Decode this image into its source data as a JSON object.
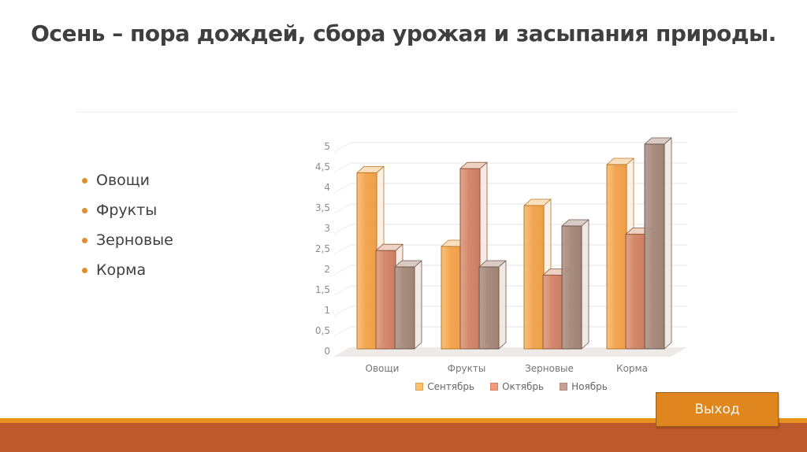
{
  "slide": {
    "title": "Осень – пора дождей, сбора урожая и засыпания природы.",
    "bullets": [
      "Овощи",
      "Фрукты",
      "Зерновые",
      "Корма"
    ],
    "exit_button_label": "Выход",
    "accent_colors": {
      "bullet": "#E08E2D",
      "footer_stripe": "#E8941F",
      "footer_band": "#BC5A2D",
      "button_fill": "#DF861E",
      "button_border": "#9A601B"
    }
  },
  "chart_data": {
    "type": "bar",
    "style": "3d-clustered",
    "title": "",
    "xlabel": "",
    "ylabel": "",
    "categories": [
      "Овощи",
      "Фрукты",
      "Зерновые",
      "Корма"
    ],
    "series": [
      {
        "name": "Сентябрь",
        "values": [
          4.3,
          2.5,
          3.5,
          4.5
        ],
        "colors": {
          "front": "#F2A149",
          "front_light": "#F8BE78",
          "front_dark": "#EE9A3C",
          "top": "#F8DEBB",
          "side": "#FAEEDE",
          "edge": "#B97925",
          "legend": "#F9C26E",
          "legend_edge": "#E2A44B"
        }
      },
      {
        "name": "Октябрь",
        "values": [
          2.4,
          4.4,
          1.8,
          2.8
        ],
        "colors": {
          "front": "#D28366",
          "front_light": "#DFA187",
          "front_dark": "#C97755",
          "top": "#EDD0C0",
          "side": "#F4E5DB",
          "edge": "#935A40",
          "legend": "#F09B7B",
          "legend_edge": "#D88061"
        }
      },
      {
        "name": "Ноябрь",
        "values": [
          2,
          2,
          3,
          5
        ],
        "colors": {
          "front": "#A48778",
          "front_light": "#B59B8F",
          "front_dark": "#9A7D6E",
          "top": "#D7C8C0",
          "side": "#ECE2DC",
          "edge": "#6E5850",
          "legend": "#C9A094",
          "legend_edge": "#B38A7D"
        }
      }
    ],
    "ylim": [
      0,
      5
    ],
    "ytick_step": 0.5,
    "ytick_labels": [
      "0",
      "0,5",
      "1",
      "1,5",
      "2",
      "2,5",
      "3",
      "3,5",
      "4",
      "4,5",
      "5"
    ],
    "grid": true,
    "legend_position": "bottom"
  }
}
